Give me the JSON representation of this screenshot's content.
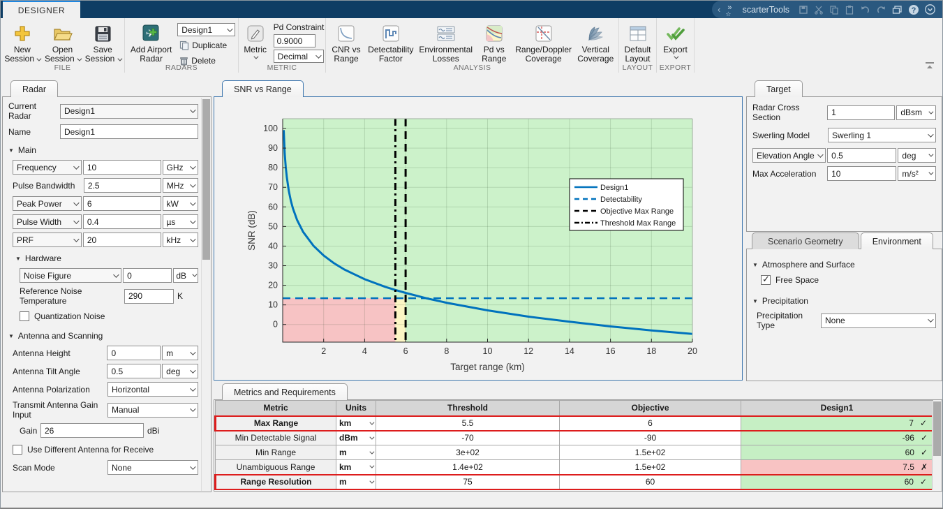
{
  "titlebar": {
    "tab": "DESIGNER",
    "app_name": "scarterTools"
  },
  "ribbon": {
    "file": {
      "section": "FILE",
      "new_line1": "New",
      "new_line2": "Session",
      "open_line1": "Open",
      "open_line2": "Session",
      "save_line1": "Save",
      "save_line2": "Session"
    },
    "radars": {
      "section": "RADARS",
      "add_line1": "Add Airport",
      "add_line2": "Radar",
      "design_dropdown": "Design1",
      "duplicate": "Duplicate",
      "delete": "Delete"
    },
    "metric": {
      "section": "METRIC",
      "metric_button": "Metric",
      "pd_constraint_label": "Pd Constraint",
      "pd_constraint_value": "0.9000",
      "format_dropdown": "Decimal"
    },
    "analysis": {
      "section": "ANALYSIS",
      "buttons": [
        {
          "line1": "CNR vs",
          "line2": "Range"
        },
        {
          "line1": "Detectability",
          "line2": "Factor"
        },
        {
          "line1": "Environmental",
          "line2": "Losses"
        },
        {
          "line1": "Pd vs",
          "line2": "Range"
        },
        {
          "line1": "Range/Doppler",
          "line2": "Coverage"
        },
        {
          "line1": "Vertical",
          "line2": "Coverage"
        }
      ]
    },
    "layout": {
      "section": "LAYOUT",
      "line1": "Default",
      "line2": "Layout"
    },
    "export": {
      "section": "EXPORT",
      "label": "Export"
    }
  },
  "left_panel": {
    "tab": "Radar",
    "current_radar": {
      "label": "Current Radar",
      "value": "Design1"
    },
    "name": {
      "label": "Name",
      "value": "Design1"
    },
    "main": {
      "header": "Main",
      "frequency": {
        "label": "Frequency",
        "value": "10",
        "unit": "GHz"
      },
      "pulse_bandwidth": {
        "label": "Pulse Bandwidth",
        "value": "2.5",
        "unit": "MHz"
      },
      "peak_power": {
        "label": "Peak Power",
        "value": "6",
        "unit": "kW"
      },
      "pulse_width": {
        "label": "Pulse Width",
        "value": "0.4",
        "unit": "µs"
      },
      "prf": {
        "label": "PRF",
        "value": "20",
        "unit": "kHz"
      }
    },
    "hardware": {
      "header": "Hardware",
      "noise_figure": {
        "label": "Noise Figure",
        "value": "0",
        "unit": "dB"
      },
      "ref_noise_temp": {
        "label": "Reference Noise Temperature",
        "value": "290",
        "unit": "K"
      },
      "quantization_noise": {
        "label": "Quantization Noise",
        "checked": false
      }
    },
    "antenna": {
      "header": "Antenna and Scanning",
      "antenna_height": {
        "label": "Antenna Height",
        "value": "0",
        "unit": "m"
      },
      "antenna_tilt": {
        "label": "Antenna Tilt Angle",
        "value": "0.5",
        "unit": "deg"
      },
      "polarization": {
        "label": "Antenna Polarization",
        "value": "Horizontal"
      },
      "gain_input": {
        "label": "Transmit Antenna Gain Input",
        "value": "Manual"
      },
      "gain": {
        "label": "Gain",
        "value": "26",
        "unit": "dBi"
      },
      "different_antenna": {
        "label": "Use Different Antenna for Receive",
        "checked": false
      },
      "scan_mode": {
        "label": "Scan Mode",
        "value": "None"
      }
    }
  },
  "chart_panel": {
    "tab": "SNR vs Range"
  },
  "target_panel": {
    "tab": "Target",
    "rcs": {
      "label": "Radar Cross Section",
      "value": "1",
      "unit": "dBsm"
    },
    "swerling": {
      "label": "Swerling Model",
      "value": "Swerling 1"
    },
    "elevation": {
      "label": "Elevation Angle",
      "value": "0.5",
      "unit": "deg"
    },
    "max_acceleration": {
      "label": "Max Acceleration",
      "value": "10",
      "unit": "m/s²"
    }
  },
  "environment_panel": {
    "tab_inactive": "Scenario Geometry",
    "tab_active": "Environment",
    "atmosphere_header": "Atmosphere and Surface",
    "free_space": {
      "label": "Free Space",
      "checked": true
    },
    "precipitation_header": "Precipitation",
    "precipitation_type": {
      "label": "Precipitation Type",
      "value": "None"
    }
  },
  "metrics_panel": {
    "tab": "Metrics and Requirements",
    "columns": {
      "metric": "Metric",
      "units": "Units",
      "threshold": "Threshold",
      "objective": "Objective",
      "design1": "Design1"
    },
    "rows": [
      {
        "metric": "Max Range",
        "units": "km",
        "threshold": "5.5",
        "objective": "6",
        "design1": "7",
        "status": "✓",
        "result": "pass",
        "highlighted": true
      },
      {
        "metric": "Min Detectable Signal",
        "units": "dBm",
        "threshold": "-70",
        "objective": "-90",
        "design1": "-96",
        "status": "✓",
        "result": "pass",
        "highlighted": false
      },
      {
        "metric": "Min Range",
        "units": "m",
        "threshold": "3e+02",
        "objective": "1.5e+02",
        "design1": "60",
        "status": "✓",
        "result": "pass",
        "highlighted": false
      },
      {
        "metric": "Unambiguous Range",
        "units": "km",
        "threshold": "1.4e+02",
        "objective": "1.5e+02",
        "design1": "7.5",
        "status": "✗",
        "result": "fail",
        "highlighted": false
      },
      {
        "metric": "Range Resolution",
        "units": "m",
        "threshold": "75",
        "objective": "60",
        "design1": "60",
        "status": "✓",
        "result": "pass",
        "highlighted": true
      }
    ]
  },
  "chart_data": {
    "type": "line",
    "title": "",
    "xlabel": "Target range (km)",
    "ylabel": "SNR (dB)",
    "xlim": [
      0,
      20
    ],
    "ylim": [
      -9,
      105
    ],
    "xticks": [
      2,
      4,
      6,
      8,
      10,
      12,
      14,
      16,
      18,
      20
    ],
    "yticks": [
      0,
      10,
      20,
      30,
      40,
      50,
      60,
      70,
      80,
      90,
      100
    ],
    "grid": true,
    "legend_position": "inside upper right",
    "background_regions": [
      {
        "name": "pass-region",
        "color": "#ccf2ca",
        "x": [
          0,
          20
        ],
        "y": [
          -9,
          105
        ]
      },
      {
        "name": "fail-region",
        "color": "#f7c3c4",
        "x": [
          0,
          5.5
        ],
        "y": [
          -9,
          13.4
        ]
      },
      {
        "name": "margin-region",
        "color": "#fcf6c5",
        "x": [
          5.5,
          6
        ],
        "y": [
          -9,
          13.4
        ]
      }
    ],
    "series": [
      {
        "name": "Design1",
        "type": "line",
        "style": "solid",
        "color": "#0072bd",
        "width": 3,
        "x": [
          0.05,
          0.1,
          0.15,
          0.2,
          0.3,
          0.4,
          0.5,
          0.7,
          1,
          1.5,
          2,
          2.5,
          3,
          4,
          5,
          5.5,
          6,
          7,
          8,
          10,
          12,
          14,
          16,
          18,
          20
        ],
        "y": [
          99.2,
          87.2,
          80.2,
          75.2,
          68.1,
          63.1,
          59.2,
          53.4,
          47.2,
          40.2,
          35.2,
          31.3,
          28.1,
          23.1,
          19.2,
          17.6,
          16.1,
          13.4,
          11.1,
          7.2,
          4.0,
          1.4,
          -1.0,
          -3.0,
          -4.8
        ]
      },
      {
        "name": "Detectability",
        "type": "hline",
        "style": "dashed",
        "color": "#0072bd",
        "width": 2.5,
        "y_value": 13.4
      },
      {
        "name": "Objective Max Range",
        "type": "vline",
        "style": "dashed",
        "color": "#000000",
        "width": 3,
        "x_value": 6
      },
      {
        "name": "Threshold Max Range",
        "type": "vline",
        "style": "dashdot",
        "color": "#000000",
        "width": 3,
        "x_value": 5.5
      }
    ]
  }
}
